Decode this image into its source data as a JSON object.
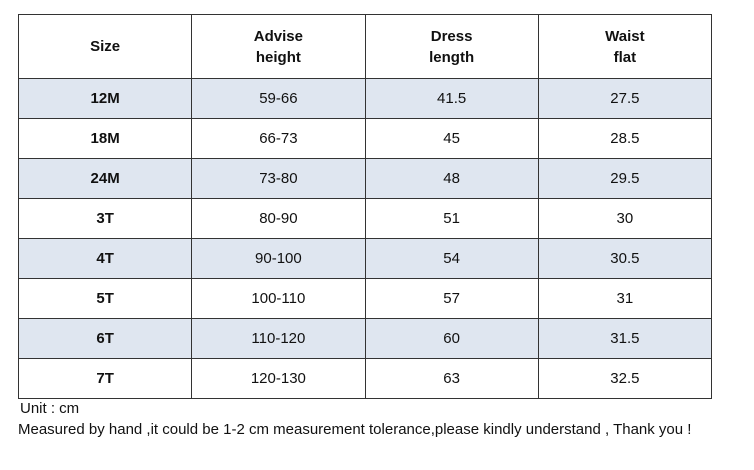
{
  "table": {
    "header": [
      [
        "Size"
      ],
      [
        "Advise",
        "height"
      ],
      [
        "Dress",
        "length"
      ],
      [
        "Waist",
        "flat"
      ]
    ],
    "rows": [
      [
        "12M",
        "59-66",
        "41.5",
        "27.5"
      ],
      [
        "18M",
        "66-73",
        "45",
        "28.5"
      ],
      [
        "24M",
        "73-80",
        "48",
        "29.5"
      ],
      [
        "3T",
        "80-90",
        "51",
        "30"
      ],
      [
        "4T",
        "90-100",
        "54",
        "30.5"
      ],
      [
        "5T",
        "100-110",
        "57",
        "31"
      ],
      [
        "6T",
        "110-120",
        "60",
        "31.5"
      ],
      [
        "7T",
        "120-130",
        "63",
        "32.5"
      ]
    ]
  },
  "notes": {
    "unit": "Unit : cm",
    "tolerance": "Measured by hand ,it could be 1-2 cm measurement tolerance,please kindly understand , Thank you !"
  }
}
